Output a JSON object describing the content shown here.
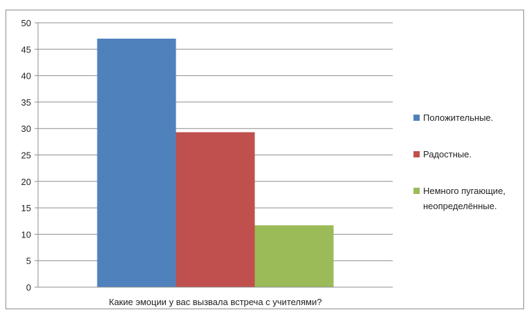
{
  "chart_data": {
    "type": "bar",
    "xlabel": "Какие эмоции у вас вызвала встреча с учителями?",
    "ylim": [
      0,
      50
    ],
    "yticks": [
      0,
      5,
      10,
      15,
      20,
      25,
      30,
      35,
      40,
      45,
      50
    ],
    "grid": true,
    "legend_position": "right",
    "series": [
      {
        "name": "Положительные.",
        "value": 47,
        "color": "#4f81bd"
      },
      {
        "name": "Радостные.",
        "value": 29.3,
        "color": "#c0504d"
      },
      {
        "name": "Немного пугающие, неопределённые.",
        "legend_lines": [
          "Немного пугающие,",
          "неопределённые."
        ],
        "value": 11.7,
        "color": "#9bbb59"
      }
    ]
  }
}
